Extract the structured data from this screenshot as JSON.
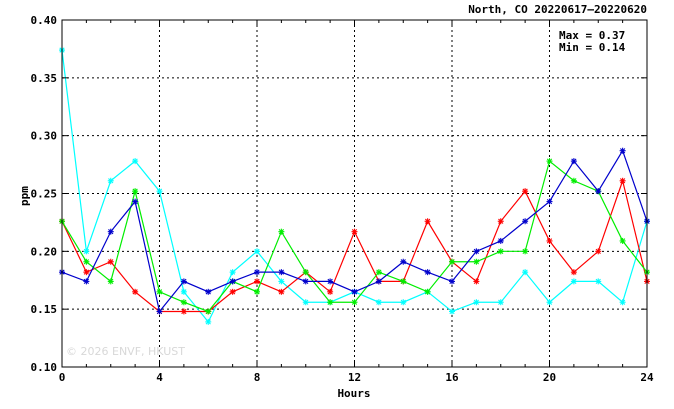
{
  "chart_data": {
    "type": "line",
    "title": "North, CO 20220617–20220620",
    "xlabel": "Hours",
    "ylabel": "ppm",
    "xlim": [
      0,
      24
    ],
    "ylim": [
      0.1,
      0.4
    ],
    "xticks": [
      0,
      4,
      8,
      12,
      16,
      20,
      24
    ],
    "yticks": [
      0.1,
      0.15,
      0.2,
      0.25,
      0.3,
      0.35,
      0.4
    ],
    "xtick_labels": [
      "0",
      "4",
      "8",
      "12",
      "16",
      "20",
      "24"
    ],
    "ytick_labels": [
      "0.10",
      "0.15",
      "0.20",
      "0.25",
      "0.30",
      "0.35",
      "0.40"
    ],
    "grid": true,
    "stats": {
      "max": "Max = 0.37",
      "min": "Min = 0.14"
    },
    "watermark": "© 2026  ENVF, HKUST",
    "x": [
      0,
      1,
      2,
      3,
      4,
      5,
      6,
      7,
      8,
      9,
      10,
      11,
      12,
      13,
      14,
      15,
      16,
      17,
      18,
      19,
      20,
      21,
      22,
      23,
      24
    ],
    "series": [
      {
        "color": "#00ffff",
        "values": [
          0.374,
          0.2,
          0.261,
          0.278,
          0.252,
          0.165,
          0.139,
          0.182,
          0.2,
          0.174,
          0.156,
          0.156,
          0.165,
          0.156,
          0.156,
          0.165,
          0.148,
          0.156,
          0.156,
          0.182,
          0.156,
          0.174,
          0.174,
          0.156,
          0.226
        ]
      },
      {
        "color": "#ff0000",
        "values": [
          0.226,
          0.182,
          0.191,
          0.165,
          0.148,
          0.148,
          0.148,
          0.165,
          0.174,
          0.165,
          0.182,
          0.165,
          0.217,
          0.174,
          0.174,
          0.226,
          0.191,
          0.174,
          0.226,
          0.252,
          0.209,
          0.182,
          0.2,
          0.261,
          0.174
        ]
      },
      {
        "color": "#00ee00",
        "values": [
          0.226,
          0.191,
          0.174,
          0.252,
          0.165,
          0.156,
          0.148,
          0.174,
          0.165,
          0.217,
          0.182,
          0.156,
          0.156,
          0.182,
          0.174,
          0.165,
          0.191,
          0.191,
          0.2,
          0.2,
          0.278,
          0.261,
          0.252,
          0.209,
          0.182
        ]
      },
      {
        "color": "#0000cc",
        "values": [
          0.182,
          0.174,
          0.217,
          0.243,
          0.148,
          0.174,
          0.165,
          0.174,
          0.182,
          0.182,
          0.174,
          0.174,
          0.165,
          0.174,
          0.191,
          0.182,
          0.174,
          0.2,
          0.209,
          0.226,
          0.243,
          0.278,
          0.252,
          0.287,
          0.226
        ]
      }
    ]
  }
}
